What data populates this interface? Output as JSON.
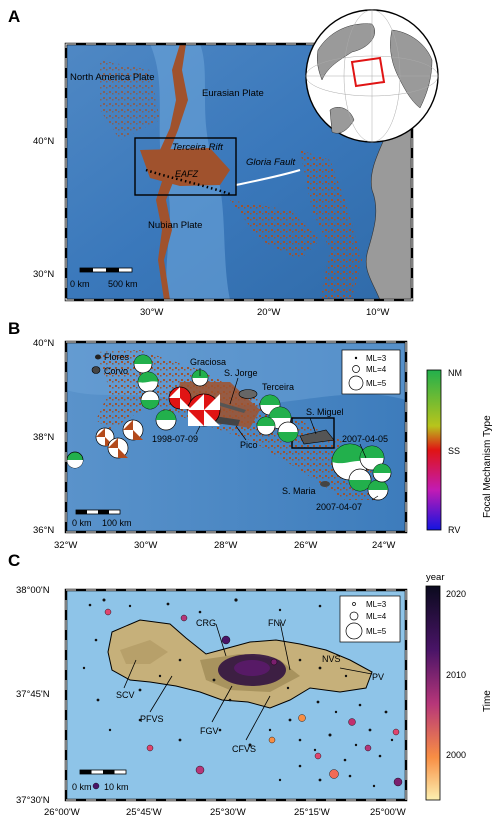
{
  "colors": {
    "ocean_deep": "#2f6fb0",
    "ocean_mid": "#5f97cf",
    "ocean_shallow": "#9cc7e6",
    "seismicity": "#a0522d",
    "mechanism_nm": "#22b04c",
    "mechanism_ss": "#e01414",
    "mechanism_rv": "#1414e0",
    "land": "#9a9a9a",
    "frame": "#111111"
  },
  "panel_a": {
    "label": "A",
    "plates": {
      "north_america": "North America Plate",
      "eurasian": "Eurasian Plate",
      "nubian": "Nubian Plate"
    },
    "features": {
      "terceira_rift": "Terceira Rift",
      "gloria_fault": "Gloria Fault",
      "eafz": "EAFZ"
    },
    "lat_ticks": [
      "40°N",
      "30°N"
    ],
    "lon_ticks": [
      "30°W",
      "20°W",
      "10°W"
    ],
    "scale_bar": {
      "left": "0 km",
      "right": "500 km"
    }
  },
  "panel_b": {
    "label": "B",
    "islands": {
      "flores": "Flores",
      "corvo": "Corvo",
      "graciosa": "Graciosa",
      "sao_jorge": "S. Jorge",
      "terceira": "Terceira",
      "pico": "Pico",
      "sao_miguel": "S. Miguel",
      "santa_maria": "S. Maria"
    },
    "events": {
      "e1998": "1998-07-09",
      "e2007a": "2007-04-05",
      "e2007b": "2007-04-07"
    },
    "lat_ticks": [
      "40°N",
      "38°N",
      "36°N"
    ],
    "lon_ticks": [
      "32°W",
      "30°W",
      "28°W",
      "26°W",
      "24°W"
    ],
    "scale_bar": {
      "left": "0 km",
      "right": "100 km"
    },
    "magnitude_legend": [
      "ML=3",
      "ML=4",
      "ML=5"
    ],
    "colorbar": {
      "title": "Focal Mechanism Type",
      "top": "NM",
      "mid": "SS",
      "bottom": "RV"
    }
  },
  "panel_c": {
    "label": "C",
    "zones": {
      "scv": "SCV",
      "pfvs": "PFVS",
      "fgv": "FGV",
      "cfvs": "CFVS",
      "crg": "CRG",
      "fnv": "FNV",
      "nvs": "NVS",
      "pv": "PV"
    },
    "lat_ticks": [
      "38°00'N",
      "37°45'N",
      "37°30'N"
    ],
    "lon_ticks": [
      "26°00'W",
      "25°45'W",
      "25°30'W",
      "25°15'W",
      "25°00'W"
    ],
    "scale_bar": {
      "left": "0 km",
      "right": "10 km"
    },
    "magnitude_legend": [
      "ML=3",
      "ML=4",
      "ML=5"
    ],
    "colorbar": {
      "unit": "year",
      "title": "Time",
      "ticks": [
        "2020",
        "2010",
        "2000"
      ]
    }
  }
}
